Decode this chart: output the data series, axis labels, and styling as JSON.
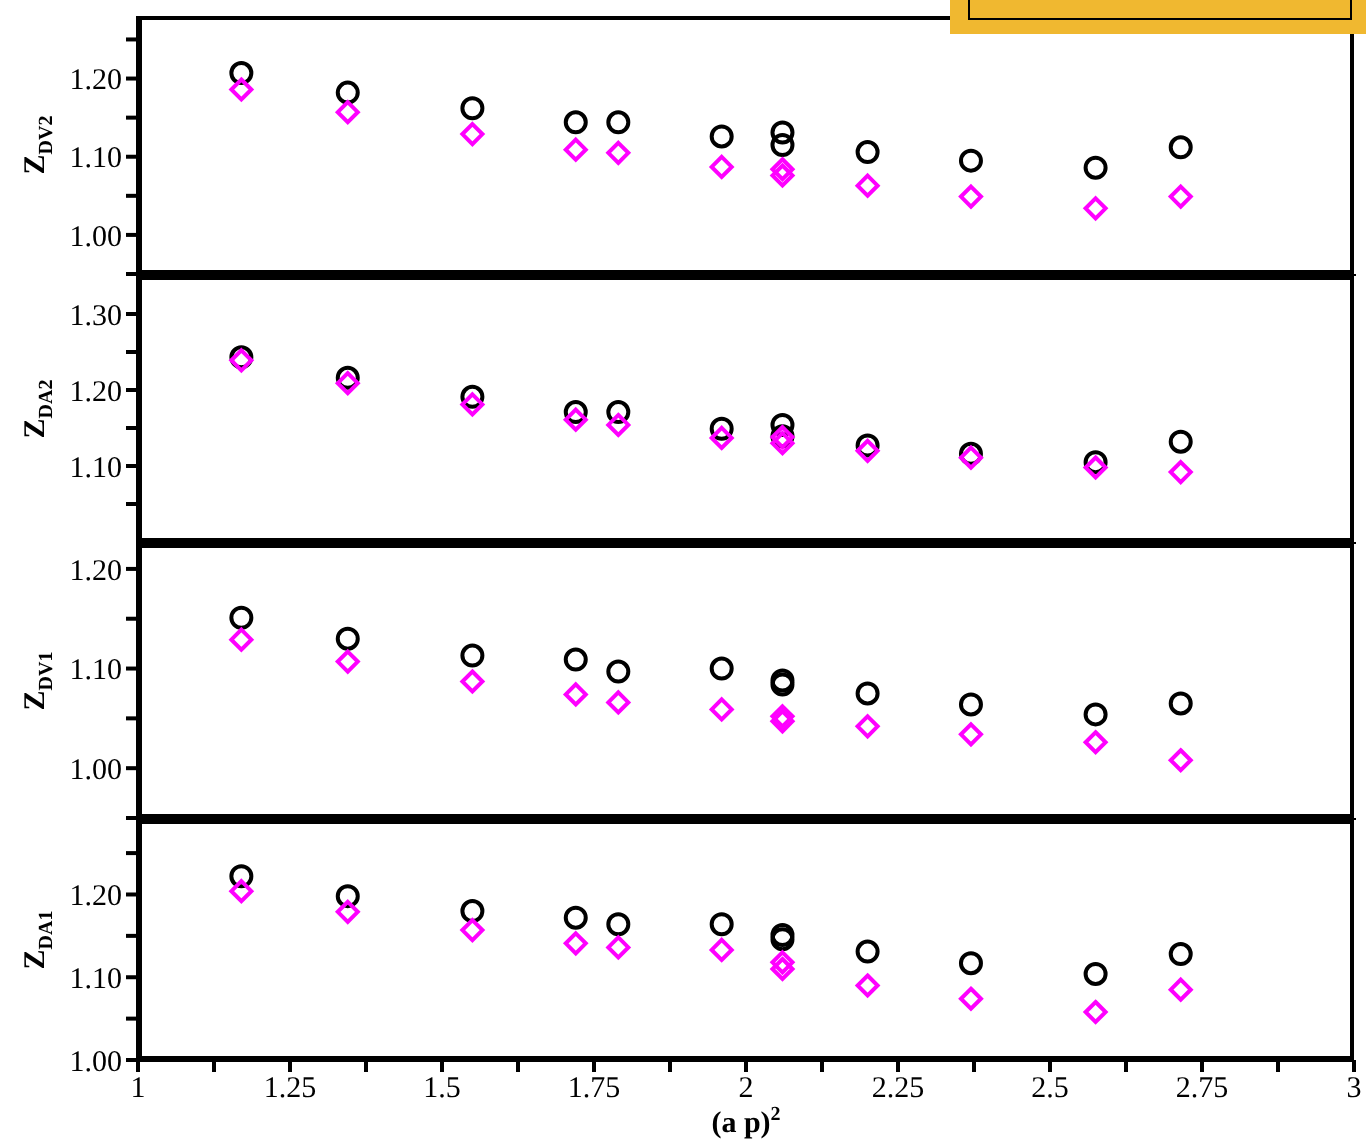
{
  "chart_data": [
    {
      "type": "scatter",
      "ylabel": "Z$_{DV2}$",
      "xlim": [
        1,
        3
      ],
      "ylim": [
        0.95,
        1.28
      ],
      "tick_labels": "y",
      "grid": false,
      "legend": false,
      "xticks": [
        1,
        {
          "value": 1.125,
          "label": null
        },
        1.25,
        {
          "value": 1.375,
          "label": null
        },
        1.5,
        {
          "value": 1.625,
          "label": null
        },
        1.75,
        {
          "value": 1.875,
          "label": null
        },
        2,
        {
          "value": 2.125,
          "label": null
        },
        2.25,
        {
          "value": 2.375,
          "label": null
        },
        2.5,
        {
          "value": 2.625,
          "label": null
        },
        2.75,
        {
          "value": 2.875,
          "label": null
        },
        3
      ],
      "yticks": [
        {
          "value": 0.95,
          "label": null
        },
        {
          "value": 1,
          "label": "1.00"
        },
        {
          "value": 1.05,
          "label": null
        },
        {
          "value": 1.1,
          "label": "1.10"
        },
        {
          "value": 1.15,
          "label": null
        },
        {
          "value": 1.2,
          "label": "1.20"
        },
        {
          "value": 1.25,
          "label": null
        }
      ],
      "x": [
        1.17,
        1.345,
        1.55,
        1.72,
        1.79,
        1.96,
        2.06,
        2.06,
        2.2,
        2.37,
        2.575,
        2.715
      ],
      "series": [
        {
          "color": "#000000",
          "marker": "circle",
          "values": [
            1.207,
            1.182,
            1.162,
            1.144,
            1.144,
            1.126,
            1.131,
            1.115,
            1.106,
            1.095,
            1.086,
            1.112
          ]
        },
        {
          "color": "#ff00ff",
          "marker": "diamond",
          "values": [
            1.186,
            1.157,
            1.129,
            1.109,
            1.105,
            1.087,
            1.084,
            1.076,
            1.063,
            1.049,
            1.034,
            1.049
          ]
        }
      ]
    },
    {
      "type": "scatter",
      "ylabel": "Z$_{DA2}$",
      "xlim": [
        1,
        3
      ],
      "ylim": [
        1.0,
        1.35
      ],
      "tick_labels": "y",
      "grid": false,
      "legend": false,
      "xticks": [
        1,
        {
          "value": 1.125,
          "label": null
        },
        1.25,
        {
          "value": 1.375,
          "label": null
        },
        1.5,
        {
          "value": 1.625,
          "label": null
        },
        1.75,
        {
          "value": 1.875,
          "label": null
        },
        2,
        {
          "value": 2.125,
          "label": null
        },
        2.25,
        {
          "value": 2.375,
          "label": null
        },
        2.5,
        {
          "value": 2.625,
          "label": null
        },
        2.75,
        {
          "value": 2.875,
          "label": null
        },
        3
      ],
      "yticks": [
        {
          "value": 1.05,
          "label": null
        },
        {
          "value": 1.1,
          "label": "1.10"
        },
        {
          "value": 1.15,
          "label": null
        },
        {
          "value": 1.2,
          "label": "1.20"
        },
        {
          "value": 1.25,
          "label": null
        },
        {
          "value": 1.3,
          "label": "1.30"
        }
      ],
      "x": [
        1.17,
        1.345,
        1.55,
        1.72,
        1.79,
        1.96,
        2.06,
        2.06,
        2.2,
        2.37,
        2.575,
        2.715
      ],
      "series": [
        {
          "color": "#000000",
          "marker": "circle",
          "values": [
            1.243,
            1.216,
            1.191,
            1.171,
            1.171,
            1.149,
            1.154,
            1.139,
            1.127,
            1.116,
            1.105,
            1.132
          ]
        },
        {
          "color": "#ff00ff",
          "marker": "diamond",
          "values": [
            1.239,
            1.209,
            1.181,
            1.161,
            1.154,
            1.137,
            1.138,
            1.13,
            1.12,
            1.111,
            1.098,
            1.092
          ]
        }
      ]
    },
    {
      "type": "scatter",
      "ylabel": "Z$_{DV1}$",
      "xlim": [
        1,
        3
      ],
      "ylim": [
        0.95,
        1.225
      ],
      "tick_labels": "y",
      "grid": false,
      "legend": false,
      "xticks": [
        1,
        {
          "value": 1.125,
          "label": null
        },
        1.25,
        {
          "value": 1.375,
          "label": null
        },
        1.5,
        {
          "value": 1.625,
          "label": null
        },
        1.75,
        {
          "value": 1.875,
          "label": null
        },
        2,
        {
          "value": 2.125,
          "label": null
        },
        2.25,
        {
          "value": 2.375,
          "label": null
        },
        2.5,
        {
          "value": 2.625,
          "label": null
        },
        2.75,
        {
          "value": 2.875,
          "label": null
        },
        3
      ],
      "yticks": [
        {
          "value": 0.95,
          "label": null
        },
        {
          "value": 1,
          "label": "1.00"
        },
        {
          "value": 1.05,
          "label": null
        },
        {
          "value": 1.1,
          "label": "1.10"
        },
        {
          "value": 1.15,
          "label": null
        },
        {
          "value": 1.2,
          "label": "1.20"
        }
      ],
      "x": [
        1.17,
        1.345,
        1.55,
        1.72,
        1.79,
        1.96,
        2.06,
        2.06,
        2.2,
        2.37,
        2.575,
        2.715
      ],
      "series": [
        {
          "color": "#000000",
          "marker": "circle",
          "values": [
            1.151,
            1.13,
            1.113,
            1.109,
            1.097,
            1.1,
            1.088,
            1.084,
            1.075,
            1.064,
            1.054,
            1.065
          ]
        },
        {
          "color": "#ff00ff",
          "marker": "diamond",
          "values": [
            1.129,
            1.107,
            1.087,
            1.074,
            1.066,
            1.059,
            1.052,
            1.047,
            1.042,
            1.034,
            1.026,
            1.008
          ]
        }
      ]
    },
    {
      "type": "scatter",
      "ylabel": "Z$_{DA1}$",
      "xlabel": "(a p)$^{2}$",
      "xlim": [
        1,
        3
      ],
      "ylim": [
        1.0,
        1.29
      ],
      "grid": false,
      "legend": false,
      "xticks": [
        1,
        {
          "value": 1.125,
          "label": null
        },
        1.25,
        {
          "value": 1.375,
          "label": null
        },
        1.5,
        {
          "value": 1.625,
          "label": null
        },
        1.75,
        {
          "value": 1.875,
          "label": null
        },
        2,
        {
          "value": 2.125,
          "label": null
        },
        2.25,
        {
          "value": 2.375,
          "label": null
        },
        2.5,
        {
          "value": 2.625,
          "label": null
        },
        2.75,
        {
          "value": 2.875,
          "label": null
        },
        3
      ],
      "yticks": [
        {
          "value": 1,
          "label": "1.00"
        },
        {
          "value": 1.05,
          "label": null
        },
        {
          "value": 1.1,
          "label": "1.10"
        },
        {
          "value": 1.15,
          "label": null
        },
        {
          "value": 1.2,
          "label": "1.20"
        },
        {
          "value": 1.25,
          "label": null
        }
      ],
      "x": [
        1.17,
        1.345,
        1.55,
        1.72,
        1.79,
        1.96,
        2.06,
        2.06,
        2.2,
        2.37,
        2.575,
        2.715
      ],
      "series": [
        {
          "color": "#000000",
          "marker": "circle",
          "values": [
            1.222,
            1.198,
            1.18,
            1.172,
            1.164,
            1.164,
            1.151,
            1.146,
            1.131,
            1.117,
            1.104,
            1.128
          ]
        },
        {
          "color": "#ff00ff",
          "marker": "diamond",
          "values": [
            1.204,
            1.179,
            1.157,
            1.141,
            1.136,
            1.133,
            1.118,
            1.11,
            1.09,
            1.074,
            1.058,
            1.085
          ]
        }
      ]
    }
  ]
}
